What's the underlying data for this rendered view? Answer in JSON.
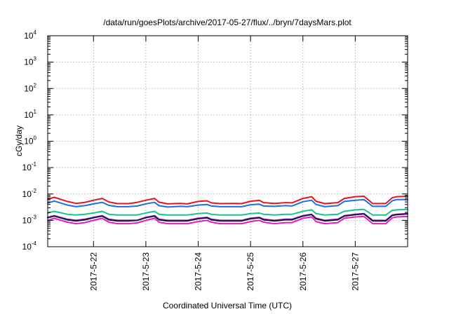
{
  "chart_data": {
    "type": "line",
    "title": "/data/run/goesPlots/archive/2017-05-27/flux/../bryn/7daysMars.plot",
    "xlabel": "Coordinated Universal Time (UTC)",
    "ylabel": "cGy/day",
    "yscale": "log",
    "ylim": [
      0.0001,
      10000
    ],
    "xlim": [
      "2017-05-21 03:00",
      "2017-05-27 24:00"
    ],
    "grid": true,
    "x_ticks": [
      "2017-5-22",
      "2017-5-23",
      "2017-5-24",
      "2017-5-25",
      "2017-5-26",
      "2017-5-27"
    ],
    "y_ticks": [
      {
        "value": 0.0001,
        "base": "10",
        "exp": "-4"
      },
      {
        "value": 0.001,
        "base": "10",
        "exp": "-3"
      },
      {
        "value": 0.01,
        "base": "10",
        "exp": "-2"
      },
      {
        "value": 0.1,
        "base": "10",
        "exp": "-1"
      },
      {
        "value": 1,
        "base": "10",
        "exp": "0"
      },
      {
        "value": 10,
        "base": "10",
        "exp": "1"
      },
      {
        "value": 100,
        "base": "10",
        "exp": "2"
      },
      {
        "value": 1000,
        "base": "10",
        "exp": "3"
      },
      {
        "value": 10000,
        "base": "10",
        "exp": "4"
      }
    ],
    "x": [
      "2017-05-21 03:00",
      "2017-05-21 06:00",
      "2017-05-21 12:00",
      "2017-05-21 16:00",
      "2017-05-21 20:00",
      "2017-05-22 00:00",
      "2017-05-22 04:00",
      "2017-05-22 07:00",
      "2017-05-22 11:00",
      "2017-05-22 16:00",
      "2017-05-22 20:00",
      "2017-05-23 00:00",
      "2017-05-23 04:00",
      "2017-05-23 06:00",
      "2017-05-23 10:00",
      "2017-05-23 16:00",
      "2017-05-23 19:00",
      "2017-05-24 00:00",
      "2017-05-24 04:00",
      "2017-05-24 06:00",
      "2017-05-24 10:00",
      "2017-05-24 16:00",
      "2017-05-24 20:00",
      "2017-05-25 00:00",
      "2017-05-25 04:00",
      "2017-05-25 06:00",
      "2017-05-25 11:00",
      "2017-05-25 16:00",
      "2017-05-25 19:00",
      "2017-05-26 00:00",
      "2017-05-26 04:00",
      "2017-05-26 06:00",
      "2017-05-26 10:00",
      "2017-05-26 16:00",
      "2017-05-26 19:00",
      "2017-05-27 00:00",
      "2017-05-27 04:00",
      "2017-05-27 08:00",
      "2017-05-27 14:00",
      "2017-05-27 17:00",
      "2017-05-27 19:00",
      "2017-05-27 24:00"
    ],
    "series": [
      {
        "color": "#e8141c",
        "width": 2,
        "values": [
          0.0063,
          0.0075,
          0.0052,
          0.0044,
          0.0048,
          0.0058,
          0.0068,
          0.005,
          0.0043,
          0.0043,
          0.0048,
          0.0058,
          0.0068,
          0.0049,
          0.0042,
          0.0044,
          0.0042,
          0.0052,
          0.0055,
          0.0046,
          0.0043,
          0.0044,
          0.0043,
          0.0053,
          0.0057,
          0.0047,
          0.0044,
          0.0047,
          0.0046,
          0.0068,
          0.0079,
          0.0053,
          0.0043,
          0.0047,
          0.0068,
          0.0079,
          0.0082,
          0.0043,
          0.0044,
          0.0072,
          0.0079,
          0.0082
        ]
      },
      {
        "color": "#1e6ee8",
        "width": 2,
        "values": [
          0.0045,
          0.0054,
          0.0038,
          0.0033,
          0.0036,
          0.0042,
          0.0048,
          0.0037,
          0.0033,
          0.0033,
          0.0035,
          0.0042,
          0.0048,
          0.0036,
          0.0032,
          0.0034,
          0.0033,
          0.0038,
          0.004,
          0.0035,
          0.0033,
          0.0033,
          0.0033,
          0.0039,
          0.0041,
          0.0035,
          0.0034,
          0.0036,
          0.0035,
          0.0051,
          0.0058,
          0.004,
          0.0033,
          0.0036,
          0.0052,
          0.0058,
          0.0061,
          0.0034,
          0.0034,
          0.0055,
          0.0061,
          0.0061
        ]
      },
      {
        "color": "#18c48c",
        "width": 2,
        "values": [
          0.0019,
          0.0022,
          0.0017,
          0.0016,
          0.0017,
          0.0019,
          0.0022,
          0.0017,
          0.0016,
          0.0016,
          0.0016,
          0.0019,
          0.0022,
          0.0017,
          0.0016,
          0.0016,
          0.0016,
          0.0018,
          0.0019,
          0.0017,
          0.0016,
          0.0016,
          0.0016,
          0.0018,
          0.0019,
          0.0017,
          0.0016,
          0.0017,
          0.0017,
          0.0022,
          0.0025,
          0.0018,
          0.0016,
          0.0017,
          0.0022,
          0.0025,
          0.0026,
          0.0016,
          0.0016,
          0.0024,
          0.0025,
          0.0026
        ]
      },
      {
        "color": "#9318b8",
        "width": 2,
        "values": [
          0.0013,
          0.0015,
          0.0011,
          0.001,
          0.0011,
          0.0013,
          0.0015,
          0.0011,
          0.001,
          0.001,
          0.001,
          0.0013,
          0.0015,
          0.0011,
          0.001,
          0.001,
          0.001,
          0.0012,
          0.0013,
          0.0011,
          0.001,
          0.001,
          0.001,
          0.0012,
          0.0013,
          0.0011,
          0.001,
          0.0011,
          0.0011,
          0.0015,
          0.0017,
          0.0012,
          0.001,
          0.0011,
          0.0015,
          0.0017,
          0.0018,
          0.001,
          0.001,
          0.0016,
          0.0017,
          0.0018
        ]
      },
      {
        "color": "#1a1a3a",
        "width": 2,
        "values": [
          0.00125,
          0.00145,
          0.00105,
          0.00095,
          0.00105,
          0.00125,
          0.00145,
          0.00105,
          0.00095,
          0.00095,
          0.001,
          0.00125,
          0.00145,
          0.00105,
          0.00095,
          0.00095,
          0.00095,
          0.00115,
          0.00125,
          0.00105,
          0.00095,
          0.00095,
          0.00095,
          0.00115,
          0.00125,
          0.00105,
          0.00095,
          0.00105,
          0.00105,
          0.00145,
          0.00165,
          0.00115,
          0.00095,
          0.00105,
          0.00145,
          0.00165,
          0.00175,
          0.00095,
          0.00095,
          0.00155,
          0.00165,
          0.00175
        ]
      },
      {
        "color": "#e818c8",
        "width": 2,
        "values": [
          0.001,
          0.0012,
          0.00085,
          0.00075,
          0.00082,
          0.001,
          0.0012,
          0.00085,
          0.00075,
          0.00075,
          0.0008,
          0.001,
          0.0012,
          0.00085,
          0.00075,
          0.00075,
          0.00075,
          0.0009,
          0.001,
          0.00085,
          0.00075,
          0.00075,
          0.00075,
          0.0009,
          0.001,
          0.00085,
          0.00075,
          0.00082,
          0.00082,
          0.0012,
          0.00135,
          0.0009,
          0.00075,
          0.00082,
          0.0012,
          0.00135,
          0.0014,
          0.00075,
          0.00075,
          0.00125,
          0.00135,
          0.0014
        ]
      }
    ]
  }
}
